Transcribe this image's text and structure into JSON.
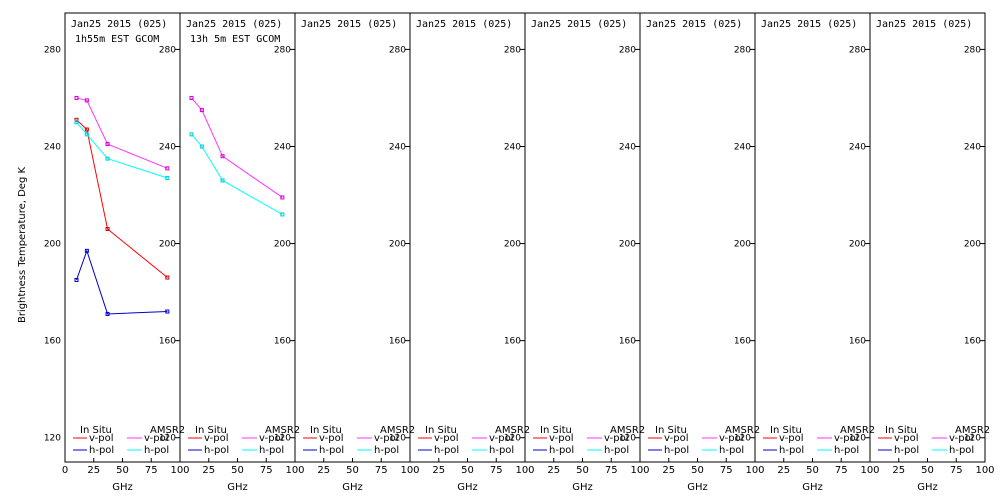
{
  "ylabel": "Brightness Temperature, Deg K",
  "xlabel": "GHz",
  "colors": {
    "in_situ_v": "#ff0000",
    "in_situ_h": "#0000cc",
    "amsr2_v": "#ff33ff",
    "amsr2_h": "#00ffff",
    "in_situ_v_stroke": "#cc0000",
    "amsr2_v_stroke": "#cc00cc",
    "amsr2_h_stroke": "#00cccc"
  },
  "chart_data": {
    "type": "line",
    "xlabel": "GHz",
    "ylabel": "Brightness Temperature, Deg K",
    "xlim": [
      0,
      100
    ],
    "ylim": [
      110,
      295
    ],
    "yticks": [
      120,
      160,
      200,
      240,
      280
    ],
    "xticks": [
      0,
      25,
      50,
      75,
      100
    ],
    "legend": {
      "in_situ": "In Situ",
      "amsr2": "AMSR2",
      "vpol": "v-pol",
      "hpol": "h-pol"
    },
    "panels": [
      {
        "title": "Jan25 2015 (025)",
        "subtitle": "1h55m EST GCOM",
        "series": [
          {
            "source": "In Situ",
            "pol": "v-pol",
            "x": [
              10,
              19,
              37,
              89
            ],
            "y": [
              251,
              247,
              206,
              186
            ]
          },
          {
            "source": "In Situ",
            "pol": "h-pol",
            "x": [
              10,
              19,
              37,
              89
            ],
            "y": [
              185,
              197,
              171,
              172
            ]
          },
          {
            "source": "AMSR2",
            "pol": "v-pol",
            "x": [
              10,
              19,
              37,
              89
            ],
            "y": [
              260,
              259,
              241,
              231
            ]
          },
          {
            "source": "AMSR2",
            "pol": "h-pol",
            "x": [
              10,
              19,
              37,
              89
            ],
            "y": [
              250,
              245,
              235,
              227
            ]
          }
        ]
      },
      {
        "title": "Jan25 2015 (025)",
        "subtitle": "13h 5m EST GCOM",
        "series": [
          {
            "source": "AMSR2",
            "pol": "v-pol",
            "x": [
              10,
              19,
              37,
              89
            ],
            "y": [
              260,
              255,
              236,
              219
            ]
          },
          {
            "source": "AMSR2",
            "pol": "h-pol",
            "x": [
              10,
              19,
              37,
              89
            ],
            "y": [
              245,
              240,
              226,
              212
            ]
          }
        ]
      },
      {
        "title": "Jan25 2015 (025)",
        "subtitle": "",
        "series": []
      },
      {
        "title": "Jan25 2015 (025)",
        "subtitle": "",
        "series": []
      },
      {
        "title": "Jan25 2015 (025)",
        "subtitle": "",
        "series": []
      },
      {
        "title": "Jan25 2015 (025)",
        "subtitle": "",
        "series": []
      },
      {
        "title": "Jan25 2015 (025)",
        "subtitle": "",
        "series": []
      },
      {
        "title": "Jan25 2015 (025)",
        "subtitle": "",
        "series": []
      }
    ]
  }
}
